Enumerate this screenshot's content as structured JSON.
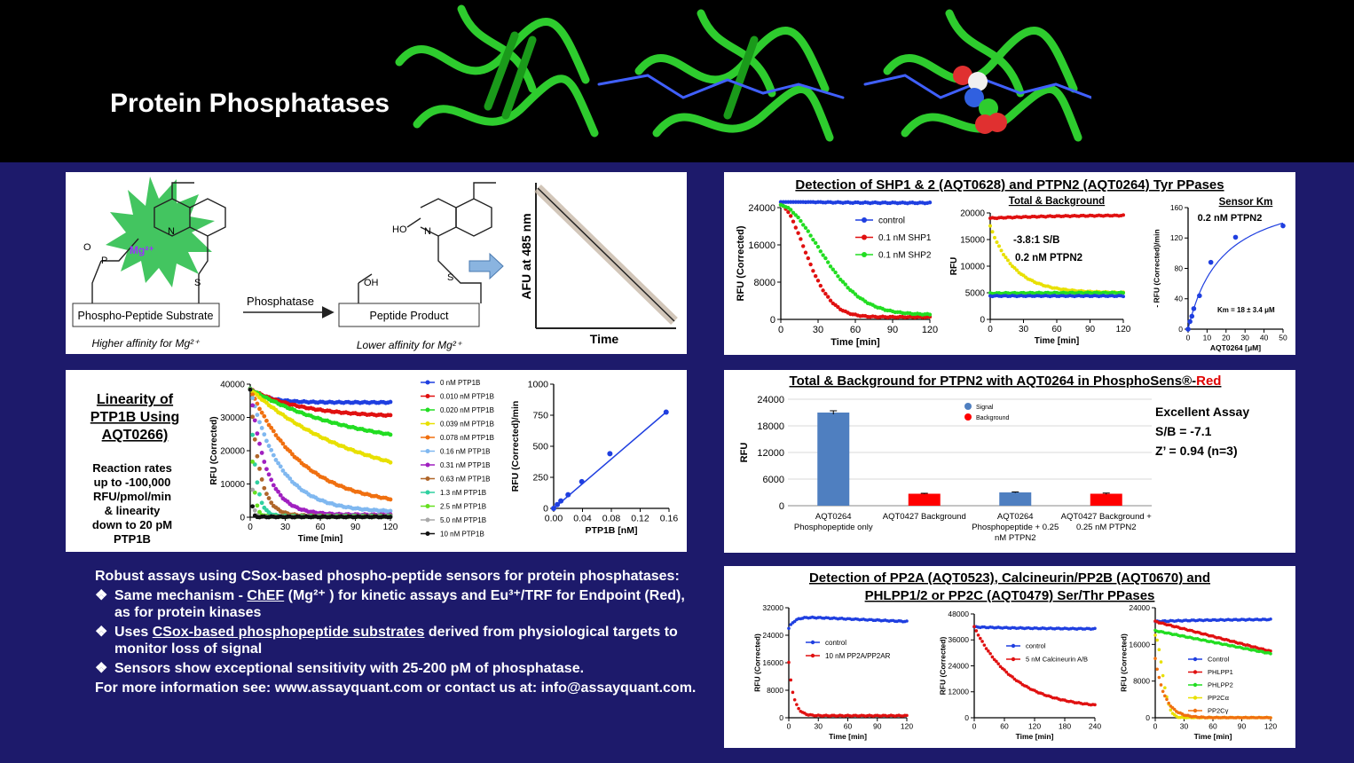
{
  "title": "Protein Phosphatases",
  "mechanism": {
    "substrate_label": "Phospho-Peptide Substrate",
    "substrate_note": "Higher affinity for Mg²⁺",
    "arrow_label": "Phosphatase",
    "product_label": "Peptide Product",
    "product_note": "Lower affinity for Mg²⁺",
    "mg_label": "Mg²⁺",
    "ho_label": "HO",
    "oh_label": "OH",
    "n_label": "N",
    "s_label": "S",
    "o_label": "O",
    "p_label": "P",
    "inset_ylabel": "AFU at 485 nm",
    "inset_xlabel": "Time"
  },
  "linearity": {
    "heading_lines": [
      "Linearity of",
      "PTP1B Using",
      "AQT0266)"
    ],
    "note_lines": [
      "Reaction rates",
      "up to -100,000",
      "RFU/pmol/min",
      "& linearity",
      "down to 20 pM",
      "PTP1B"
    ]
  },
  "shp": {
    "title": "Detection of SHP1 & 2 (AQT0628) and PTPN2 (AQT0264) Tyr PPases"
  },
  "tb": {
    "title_prefix": "Total & Background for PTPN2 with AQT0264 in PhosphoSens®-",
    "title_red": "Red",
    "notes": [
      "Excellent Assay",
      "S/B = -7.1",
      "Z’ = 0.94 (n=3)"
    ]
  },
  "pp2": {
    "title_lines": [
      "Detection of PP2A (AQT0523), Calcineurin/PP2B (AQT0670) and",
      "PHLPP1/2 or PP2C (AQT0479) Ser/Thr PPases"
    ]
  },
  "text_block": {
    "intro": "Robust assays using CSox-based phospho-peptide sensors for protein phosphatases:",
    "bullet_mark": "❖",
    "b1_a": "Same mechanism - ",
    "b1_chef": "ChEF",
    "b1_b": " (Mg²⁺ ) for kinetic assays and Eu³⁺/TRF for Endpoint (Red), as for protein kinases",
    "b2_a": "Uses ",
    "b2_link": "CSox-based phosphopeptide substrates",
    "b2_b": " derived from physiological targets to monitor loss of signal",
    "b3": "Sensors show exceptional sensitivity with 25-200 pM of phosphatase.",
    "more_info": "For more information see: www.assayquant.com or contact us at: info@assayquant.com."
  },
  "chart_data": [
    {
      "id": "ptp1b_kinetics",
      "type": "line",
      "title": "",
      "xlabel": "Time [min]",
      "ylabel": "RFU (Corrected)",
      "xlim": [
        0,
        120
      ],
      "ylim": [
        0,
        40000
      ],
      "xticks": [
        0,
        30,
        60,
        90,
        120
      ],
      "yticks": [
        0,
        10000,
        20000,
        30000,
        40000
      ],
      "series": [
        {
          "name": "0 nM PTP1B",
          "color": "#1f3fe0",
          "start": 38500,
          "end": 34500,
          "tau": 15
        },
        {
          "name": "0.010 nM PTP1B",
          "color": "#e01010",
          "start": 38500,
          "end": 30000,
          "tau": 45
        },
        {
          "name": "0.020 nM PTP1B",
          "color": "#22dd22",
          "start": 38500,
          "end": 20000,
          "tau": 90
        },
        {
          "name": "0.039 nM PTP1B",
          "color": "#e8e000",
          "start": 38500,
          "end": 8000,
          "tau": 95
        },
        {
          "name": "0.078 nM PTP1B",
          "color": "#f07010",
          "start": 38500,
          "end": 3000,
          "tau": 45
        },
        {
          "name": "0.16 nM PTP1B",
          "color": "#80b8f0",
          "start": 38500,
          "end": 1500,
          "tau": 26
        },
        {
          "name": "0.31 nM PTP1B",
          "color": "#a020c0",
          "start": 38500,
          "end": 700,
          "tau": 14
        },
        {
          "name": "0.63 nM PTP1B",
          "color": "#b0662a",
          "start": 38500,
          "end": 400,
          "tau": 8
        },
        {
          "name": "1.3 nM PTP1B",
          "color": "#30d0a0",
          "start": 38500,
          "end": 300,
          "tau": 4.5
        },
        {
          "name": "2.5 nM PTP1B",
          "color": "#66e020",
          "start": 38500,
          "end": 200,
          "tau": 2.4
        },
        {
          "name": "5.0 nM PTP1B",
          "color": "#a8a8a8",
          "start": 38500,
          "end": 150,
          "tau": 1.3
        },
        {
          "name": "10 nM PTP1B",
          "color": "#111111",
          "start": 38500,
          "end": 100,
          "tau": 0.8
        }
      ]
    },
    {
      "id": "ptp1b_rate",
      "type": "scatter",
      "title": "",
      "xlabel": "PTP1B [nM]",
      "ylabel": "RFU (Corrected)/min",
      "xlim": [
        0,
        0.16
      ],
      "ylim": [
        0,
        1000
      ],
      "xticks": [
        0.0,
        0.04,
        0.08,
        0.12,
        0.16
      ],
      "yticks": [
        0,
        250,
        500,
        750,
        1000
      ],
      "x": [
        0,
        0.005,
        0.01,
        0.02,
        0.039,
        0.078,
        0.156
      ],
      "y": [
        0,
        30,
        60,
        110,
        215,
        440,
        775
      ],
      "fit": [
        [
          0,
          0
        ],
        [
          0.156,
          775
        ]
      ]
    },
    {
      "id": "shp_kinetics",
      "type": "line",
      "title": "",
      "xlabel": "Time [min]",
      "ylabel": "RFU (Corrected)",
      "xlim": [
        0,
        120
      ],
      "ylim": [
        0,
        24000
      ],
      "xticks": [
        0,
        30,
        60,
        90,
        120
      ],
      "yticks": [
        0,
        8000,
        16000,
        24000
      ],
      "series": [
        {
          "name": "control",
          "color": "#1f3fe0",
          "start": 25500,
          "end": 25000,
          "tau": 30
        },
        {
          "name": "0.1 nM SHP1",
          "color": "#e01010",
          "start": 24500,
          "end": 500,
          "tau": 28,
          "shape": "sig"
        },
        {
          "name": "0.1 nM SHP2",
          "color": "#22dd22",
          "start": 24500,
          "end": 1000,
          "tau": 45,
          "shape": "sig"
        }
      ]
    },
    {
      "id": "ptpn2_total_background",
      "type": "line",
      "title": "Total & Background",
      "xlabel": "Time [min]",
      "ylabel": "RFU",
      "xlim": [
        0,
        120
      ],
      "ylim": [
        0,
        20000
      ],
      "xticks": [
        0,
        30,
        60,
        90,
        120
      ],
      "yticks": [
        0,
        5000,
        10000,
        15000,
        20000
      ],
      "annotations": [
        "-3.8:1  S/B",
        "0.2 nM PTPN2"
      ],
      "series": [
        {
          "name": "",
          "color": "#e01010",
          "start": 19000,
          "end": 19600,
          "tau": 60
        },
        {
          "name": "",
          "color": "#e8e000",
          "start": 17500,
          "end": 5000,
          "tau": 22
        },
        {
          "name": "",
          "color": "#22dd22",
          "start": 4900,
          "end": 5000,
          "tau": 30
        },
        {
          "name": "",
          "color": "#1f3fe0",
          "start": 4400,
          "end": 4400,
          "tau": 30
        }
      ]
    },
    {
      "id": "sensor_km",
      "type": "scatter",
      "title": "Sensor Km",
      "subtitle": "0.2 nM PTPN2",
      "xlabel": "AQT0264 [μM]",
      "ylabel": "- RFU (Corrected)/min",
      "xlim": [
        0,
        50
      ],
      "ylim": [
        0,
        160
      ],
      "xticks": [
        0,
        10,
        20,
        30,
        40,
        50
      ],
      "yticks": [
        0,
        40,
        80,
        120,
        160
      ],
      "x": [
        0,
        1,
        2,
        3,
        6,
        12,
        25,
        50
      ],
      "y": [
        0,
        10,
        17,
        27,
        44,
        88,
        121,
        136
      ],
      "annotation": "Km = 18 ± 3.4 μM",
      "fit_vmax": 190,
      "fit_km": 18
    },
    {
      "id": "tb_bar",
      "type": "bar",
      "title": "",
      "ylabel": "RFU",
      "ylim": [
        0,
        24000
      ],
      "yticks": [
        0,
        6000,
        12000,
        18000,
        24000
      ],
      "legend": [
        {
          "name": "Signal",
          "color": "#4f7fc0"
        },
        {
          "name": "Background",
          "color": "#ff0000"
        }
      ],
      "categories": [
        [
          "AQT0264",
          "Phosphopeptide only"
        ],
        [
          "AQT0427 Background"
        ],
        [
          "AQT0264",
          "Phosphopeptide + 0.25",
          "nM PTPN2"
        ],
        [
          "AQT0427 Background +",
          "0.25 nM PTPN2"
        ]
      ],
      "values": [
        21000,
        2700,
        3000,
        2700
      ],
      "errors": [
        400,
        100,
        100,
        150
      ],
      "colors": [
        "#4f7fc0",
        "#ff0000",
        "#4f7fc0",
        "#ff0000"
      ]
    },
    {
      "id": "pp2a",
      "type": "line",
      "title": "",
      "xlabel": "Time [min]",
      "ylabel": "RFU (Corrected)",
      "xlim": [
        0,
        120
      ],
      "ylim": [
        0,
        32000
      ],
      "xticks": [
        0,
        30,
        60,
        90,
        120
      ],
      "yticks": [
        0,
        8000,
        16000,
        24000,
        32000
      ],
      "series": [
        {
          "name": "control",
          "color": "#1f3fe0",
          "start": 26000,
          "end": 29500,
          "tau": 6,
          "drift": -1500
        },
        {
          "name": "10 nM PP2A/PP2AR",
          "color": "#e01010",
          "start": 16000,
          "end": 600,
          "tau": 5
        }
      ]
    },
    {
      "id": "calcineurin",
      "type": "line",
      "title": "",
      "xlabel": "Time [min]",
      "ylabel": "RFU (Corrected)",
      "xlim": [
        0,
        240
      ],
      "ylim": [
        0,
        48000
      ],
      "xticks": [
        0,
        60,
        120,
        180,
        240
      ],
      "yticks": [
        0,
        12000,
        24000,
        36000,
        48000
      ],
      "series": [
        {
          "name": "control",
          "color": "#1f3fe0",
          "start": 42000,
          "end": 41000,
          "tau": 60
        },
        {
          "name": "5 nM Calcineurin A/B",
          "color": "#e01010",
          "start": 42000,
          "end": 4000,
          "tau": 40
        }
      ]
    },
    {
      "id": "phlpp_pp2c",
      "type": "line",
      "title": "",
      "xlabel": "Time [min]",
      "ylabel": "RFU (Corrected)",
      "xlim": [
        0,
        120
      ],
      "ylim": [
        0,
        24000
      ],
      "xticks": [
        0,
        30,
        60,
        90,
        120
      ],
      "yticks": [
        0,
        8000,
        16000,
        24000
      ],
      "series": [
        {
          "name": "Control",
          "color": "#1f3fe0",
          "start": 21000,
          "end": 21500,
          "tau": 60
        },
        {
          "name": "PHLPP1",
          "color": "#e01010",
          "start": 21000,
          "end": 14500,
          "tau": 120,
          "linear": true
        },
        {
          "name": "PHLPP2",
          "color": "#22dd22",
          "start": 19000,
          "end": 14000,
          "tau": 120,
          "linear": true
        },
        {
          "name": "PP2Cα",
          "color": "#e8e000",
          "start": 18000,
          "end": 0,
          "tau": 10,
          "shape": "sig"
        },
        {
          "name": "PP2Cγ",
          "color": "#f07010",
          "start": 13000,
          "end": 0,
          "tau": 10
        }
      ]
    }
  ]
}
